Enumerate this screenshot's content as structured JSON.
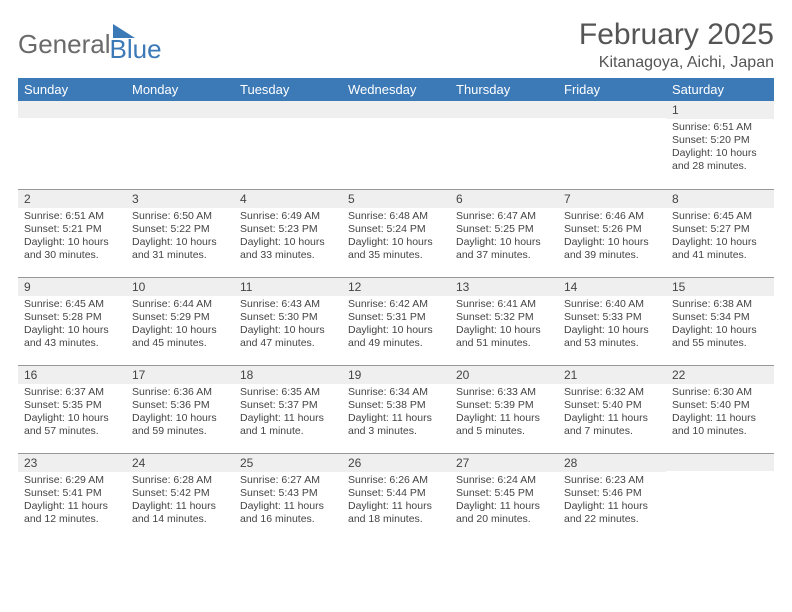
{
  "logo": {
    "word1": "General",
    "word2": "Blue"
  },
  "title": "February 2025",
  "location": "Kitanagoya, Aichi, Japan",
  "header_color": "#3b79b7",
  "daynum_bg": "#efefef",
  "border_color": "#999999",
  "weekdays": [
    "Sunday",
    "Monday",
    "Tuesday",
    "Wednesday",
    "Thursday",
    "Friday",
    "Saturday"
  ],
  "first_weekday_index": 6,
  "days": [
    {
      "n": 1,
      "rise": "6:51 AM",
      "set": "5:20 PM",
      "dl": "10 hours and 28 minutes."
    },
    {
      "n": 2,
      "rise": "6:51 AM",
      "set": "5:21 PM",
      "dl": "10 hours and 30 minutes."
    },
    {
      "n": 3,
      "rise": "6:50 AM",
      "set": "5:22 PM",
      "dl": "10 hours and 31 minutes."
    },
    {
      "n": 4,
      "rise": "6:49 AM",
      "set": "5:23 PM",
      "dl": "10 hours and 33 minutes."
    },
    {
      "n": 5,
      "rise": "6:48 AM",
      "set": "5:24 PM",
      "dl": "10 hours and 35 minutes."
    },
    {
      "n": 6,
      "rise": "6:47 AM",
      "set": "5:25 PM",
      "dl": "10 hours and 37 minutes."
    },
    {
      "n": 7,
      "rise": "6:46 AM",
      "set": "5:26 PM",
      "dl": "10 hours and 39 minutes."
    },
    {
      "n": 8,
      "rise": "6:45 AM",
      "set": "5:27 PM",
      "dl": "10 hours and 41 minutes."
    },
    {
      "n": 9,
      "rise": "6:45 AM",
      "set": "5:28 PM",
      "dl": "10 hours and 43 minutes."
    },
    {
      "n": 10,
      "rise": "6:44 AM",
      "set": "5:29 PM",
      "dl": "10 hours and 45 minutes."
    },
    {
      "n": 11,
      "rise": "6:43 AM",
      "set": "5:30 PM",
      "dl": "10 hours and 47 minutes."
    },
    {
      "n": 12,
      "rise": "6:42 AM",
      "set": "5:31 PM",
      "dl": "10 hours and 49 minutes."
    },
    {
      "n": 13,
      "rise": "6:41 AM",
      "set": "5:32 PM",
      "dl": "10 hours and 51 minutes."
    },
    {
      "n": 14,
      "rise": "6:40 AM",
      "set": "5:33 PM",
      "dl": "10 hours and 53 minutes."
    },
    {
      "n": 15,
      "rise": "6:38 AM",
      "set": "5:34 PM",
      "dl": "10 hours and 55 minutes."
    },
    {
      "n": 16,
      "rise": "6:37 AM",
      "set": "5:35 PM",
      "dl": "10 hours and 57 minutes."
    },
    {
      "n": 17,
      "rise": "6:36 AM",
      "set": "5:36 PM",
      "dl": "10 hours and 59 minutes."
    },
    {
      "n": 18,
      "rise": "6:35 AM",
      "set": "5:37 PM",
      "dl": "11 hours and 1 minute."
    },
    {
      "n": 19,
      "rise": "6:34 AM",
      "set": "5:38 PM",
      "dl": "11 hours and 3 minutes."
    },
    {
      "n": 20,
      "rise": "6:33 AM",
      "set": "5:39 PM",
      "dl": "11 hours and 5 minutes."
    },
    {
      "n": 21,
      "rise": "6:32 AM",
      "set": "5:40 PM",
      "dl": "11 hours and 7 minutes."
    },
    {
      "n": 22,
      "rise": "6:30 AM",
      "set": "5:40 PM",
      "dl": "11 hours and 10 minutes."
    },
    {
      "n": 23,
      "rise": "6:29 AM",
      "set": "5:41 PM",
      "dl": "11 hours and 12 minutes."
    },
    {
      "n": 24,
      "rise": "6:28 AM",
      "set": "5:42 PM",
      "dl": "11 hours and 14 minutes."
    },
    {
      "n": 25,
      "rise": "6:27 AM",
      "set": "5:43 PM",
      "dl": "11 hours and 16 minutes."
    },
    {
      "n": 26,
      "rise": "6:26 AM",
      "set": "5:44 PM",
      "dl": "11 hours and 18 minutes."
    },
    {
      "n": 27,
      "rise": "6:24 AM",
      "set": "5:45 PM",
      "dl": "11 hours and 20 minutes."
    },
    {
      "n": 28,
      "rise": "6:23 AM",
      "set": "5:46 PM",
      "dl": "11 hours and 22 minutes."
    }
  ],
  "labels": {
    "sunrise": "Sunrise:",
    "sunset": "Sunset:",
    "daylight": "Daylight:"
  }
}
